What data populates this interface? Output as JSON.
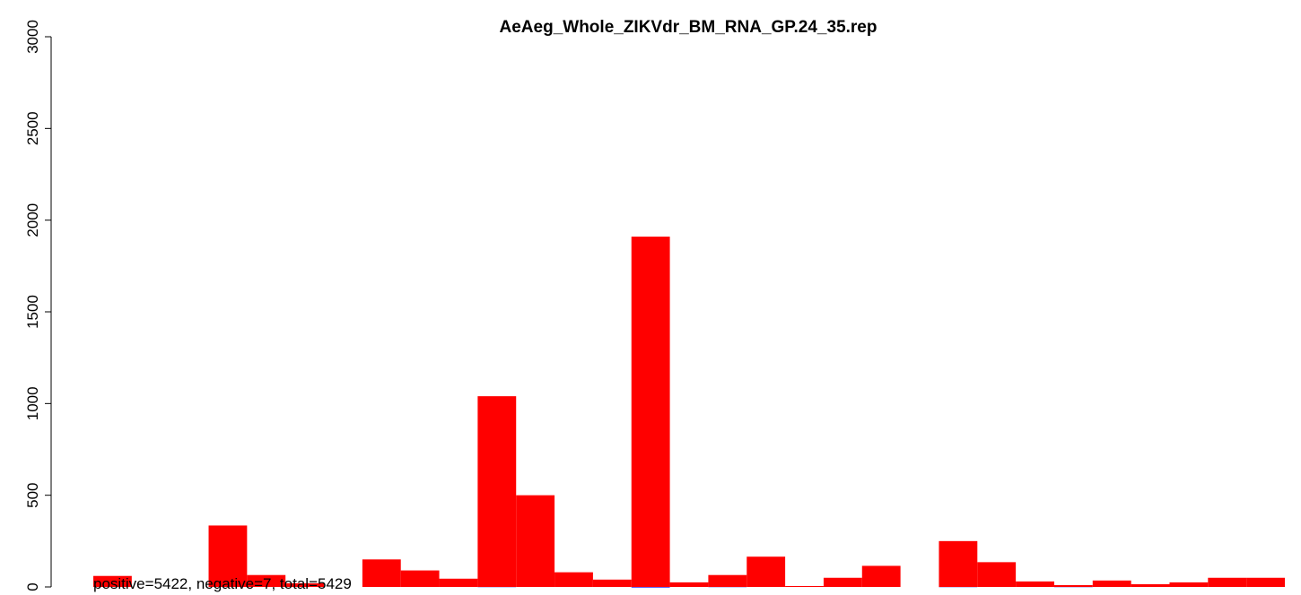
{
  "chart_data": {
    "type": "bar",
    "title": "AeAeg_Whole_ZIKVdr_BM_RNA_GP.24_35.rep",
    "annotation": "positive=5422, negative=7, total=5429",
    "series": [
      {
        "color": "#ff0000",
        "values": [
          60,
          0,
          0,
          335,
          65,
          20,
          0,
          150,
          90,
          45,
          1040,
          500,
          80,
          40,
          1910,
          25,
          65,
          165,
          5,
          50,
          115,
          0,
          250,
          135,
          30,
          10,
          35,
          15,
          25,
          50,
          50
        ]
      },
      {
        "color": "#0000ff",
        "values": [
          0,
          0,
          0,
          0,
          0,
          0,
          0,
          0,
          0,
          0,
          -1,
          0,
          0,
          0,
          -3,
          0,
          -1,
          0,
          0,
          0,
          0,
          0,
          -1,
          0,
          0,
          -1,
          0,
          0,
          0,
          0,
          0
        ]
      }
    ],
    "ylim": [
      0,
      3000
    ],
    "yticks": [
      0,
      500,
      1000,
      1500,
      2000,
      2500,
      3000
    ]
  }
}
